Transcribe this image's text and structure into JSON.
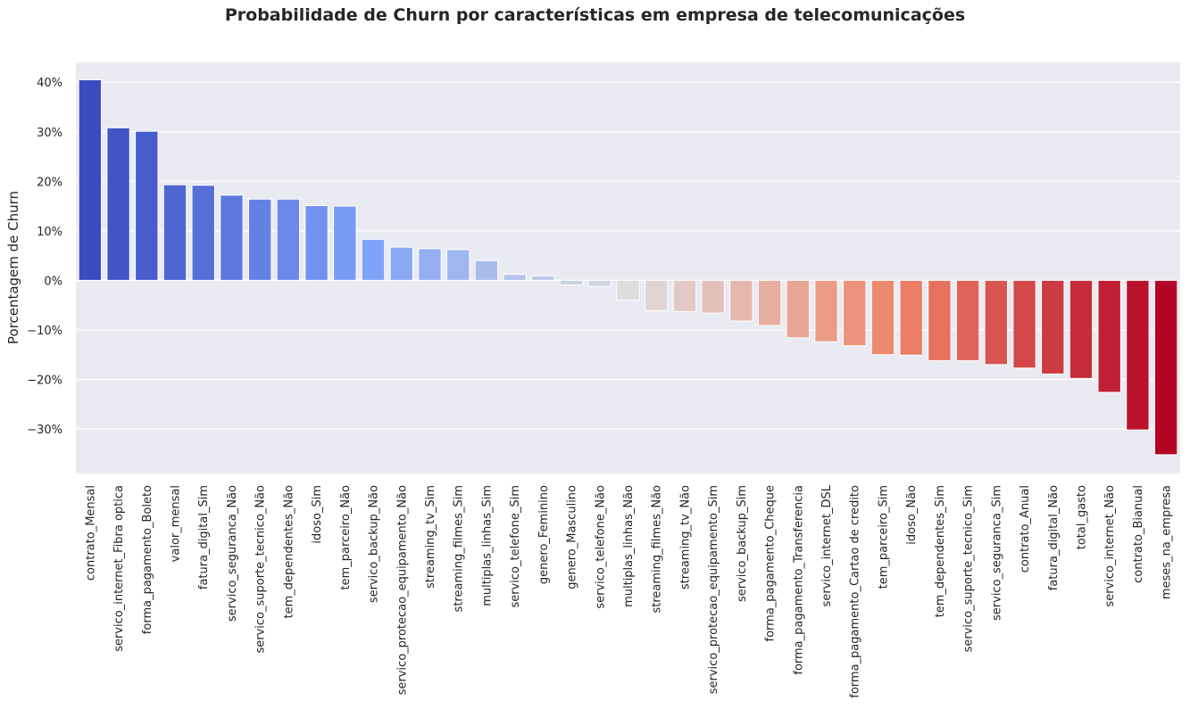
{
  "chart_data": {
    "type": "bar",
    "title": "Probabilidade de Churn por características em empresa de telecomunicações",
    "xlabel": "",
    "ylabel": "Porcentagem de Churn",
    "ylim": [
      -39,
      44
    ],
    "yticks": [
      -30,
      -20,
      -10,
      0,
      10,
      20,
      30,
      40
    ],
    "ytick_labels": [
      "−30%",
      "−20%",
      "−10%",
      "0%",
      "10%",
      "20%",
      "30%",
      "40%"
    ],
    "grid": true,
    "legend": "none",
    "palette": "coolwarm",
    "categories": [
      "contrato_Mensal",
      "servico_internet_Fibra optica",
      "forma_pagamento_Boleto",
      "valor_mensal",
      "fatura_digital_Sim",
      "servico_seguranca_Não",
      "servico_suporte_tecnico_Não",
      "tem_dependentes_Não",
      "idoso_Sim",
      "tem_parceiro_Não",
      "servico_backup_Não",
      "servico_protecao_equipamento_Não",
      "streaming_tv_Sim",
      "streaming_filmes_Sim",
      "multiplas_linhas_Sim",
      "servico_telefone_Sim",
      "genero_Feminino",
      "genero_Masculino",
      "servico_telefone_Não",
      "multiplas_linhas_Não",
      "streaming_filmes_Não",
      "streaming_tv_Não",
      "servico_protecao_equipamento_Sim",
      "servico_backup_Sim",
      "forma_pagamento_Cheque",
      "forma_pagamento_Transferencia",
      "servico_internet_DSL",
      "forma_pagamento_Cartao de credito",
      "tem_parceiro_Sim",
      "idoso_Não",
      "tem_dependentes_Sim",
      "servico_suporte_tecnico_Sim",
      "servico_seguranca_Sim",
      "contrato_Anual",
      "fatura_digital_Não",
      "total_gasto",
      "servico_internet_Não",
      "contrato_Bianual",
      "meses_na_empresa"
    ],
    "values": [
      40.5,
      30.8,
      30.1,
      19.3,
      19.2,
      17.2,
      16.4,
      16.4,
      15.1,
      15.0,
      8.3,
      6.7,
      6.4,
      6.2,
      4.0,
      1.2,
      0.9,
      -0.9,
      -1.2,
      -4.0,
      -6.1,
      -6.3,
      -6.6,
      -8.2,
      -9.1,
      -11.6,
      -12.4,
      -13.2,
      -15.0,
      -15.1,
      -16.2,
      -16.2,
      -17.0,
      -17.7,
      -18.9,
      -19.8,
      -22.6,
      -30.2,
      -35.2
    ]
  }
}
